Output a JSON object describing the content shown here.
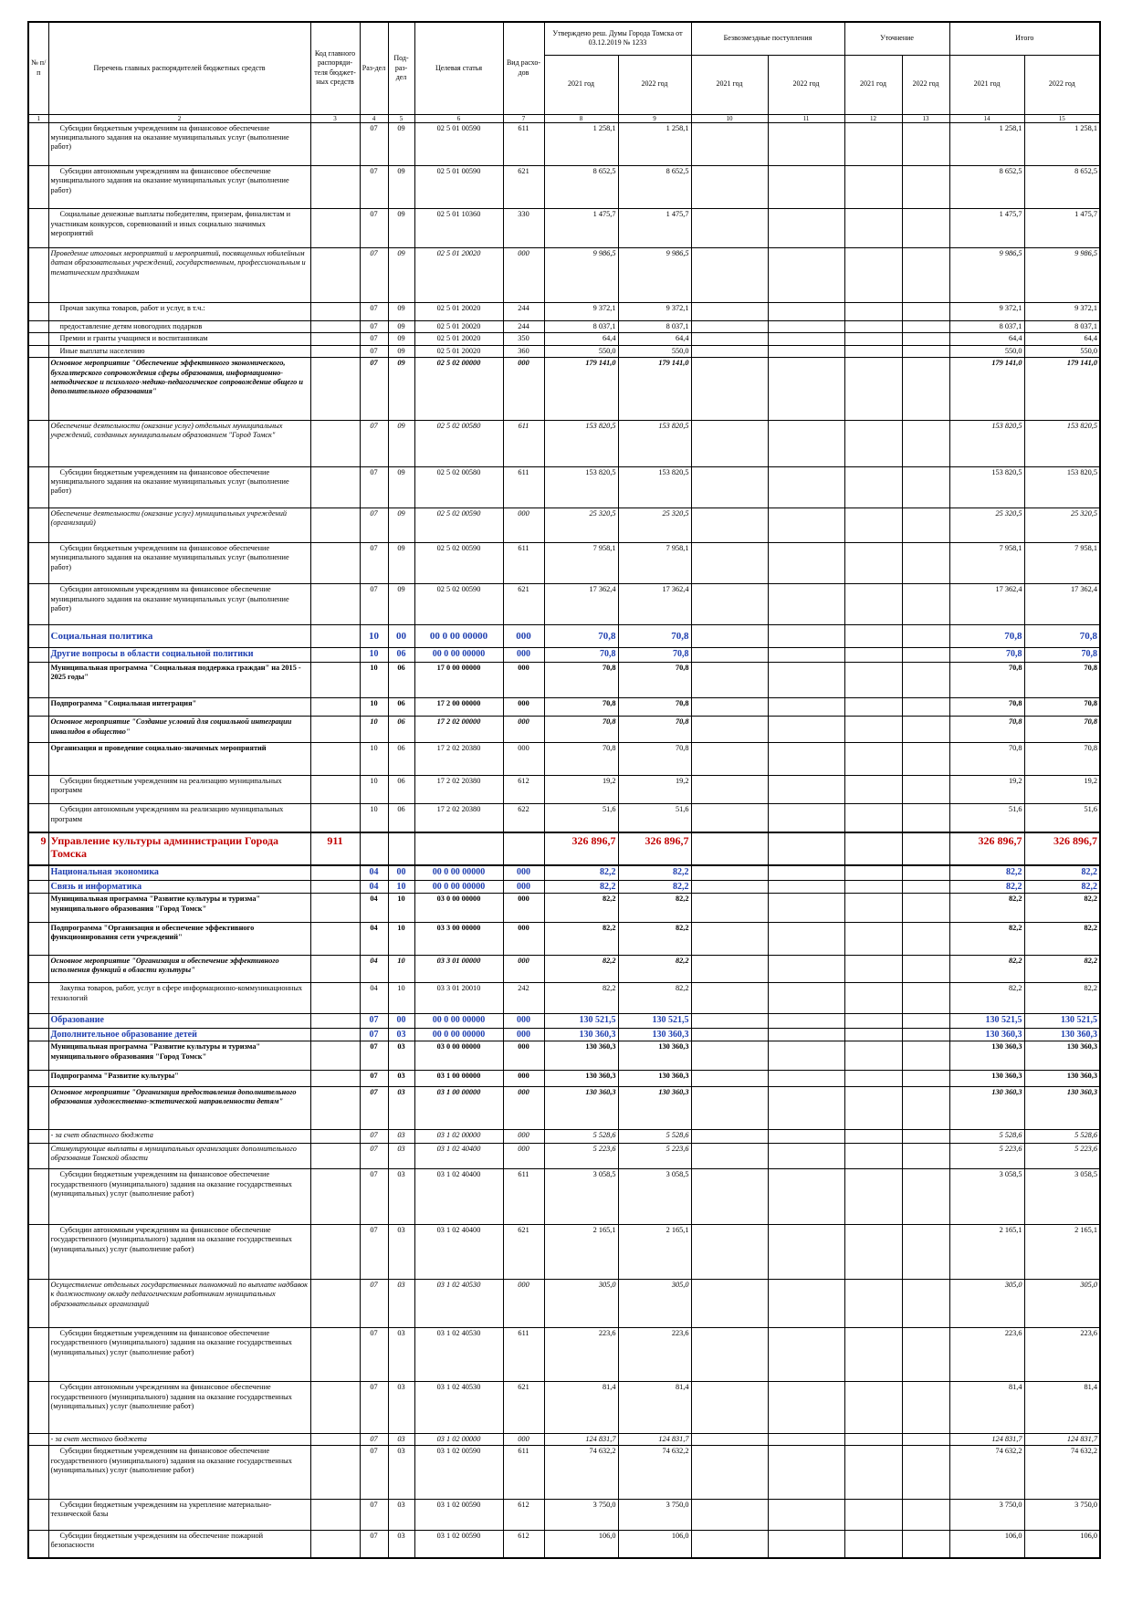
{
  "header": {
    "no": "№ п/п",
    "name": "Перечень главных распорядителей бюджетных средств",
    "code": "Код главного распоряди-теля бюджет-ных средств",
    "section": "Раз-дел",
    "subsection": "Под-раз-дел",
    "target": "Целевая статья",
    "kind": "Вид расхо-дов",
    "approved": "Утверждено реш. Думы Города Томска от 03.12.2019 № 1233",
    "grants": "Безвозмездные поступления",
    "adjust": "Уточнение",
    "total": "Итого",
    "years": [
      "2021 год",
      "2022 год",
      "2021 год",
      "2022 год",
      "2021 год",
      "2022 год",
      "2021 год",
      "2022 год"
    ],
    "numbers": [
      "1",
      "2",
      "3",
      "4",
      "5",
      "6",
      "7",
      "8",
      "9",
      "10",
      "11",
      "12",
      "13",
      "14",
      "15"
    ]
  },
  "table": {
    "rows": [
      {
        "name": "Субсидии бюджетным учреждениям на финансовое обеспечение муниципального задания на оказание муниципальных услуг (выполнение работ)",
        "section": "07",
        "subsection": "09",
        "target": "02 5 01 00590",
        "kind": "611",
        "approved_2021": "1 258,1",
        "approved_2022": "1 258,1",
        "total_2021": "1 258,1",
        "total_2022": "1 258,1",
        "style": "plain"
      },
      {
        "name": "Субсидии автономным учреждениям на финансовое обеспечение муниципального задания на оказание муниципальных услуг (выполнение работ)",
        "section": "07",
        "subsection": "09",
        "target": "02 5 01 00590",
        "kind": "621",
        "approved_2021": "8 652,5",
        "approved_2022": "8 652,5",
        "total_2021": "8 652,5",
        "total_2022": "8 652,5",
        "style": "plain"
      },
      {
        "name": "Социальные денежные выплаты победителям, призерам, финалистам и участникам конкурсов, соревнований и иных социально значимых мероприятий",
        "section": "07",
        "subsection": "09",
        "target": "02 5 01 10360",
        "kind": "330",
        "approved_2021": "1 475,7",
        "approved_2022": "1 475,7",
        "total_2021": "1 475,7",
        "total_2022": "1 475,7",
        "style": "plain"
      },
      {
        "name": "Проведение итоговых мероприятий и мероприятий, посвященных юбилейным датам образовательных учреждений, государственным, профессиональным и тематическим праздникам",
        "section": "07",
        "subsection": "09",
        "target": "02 5 01 20020",
        "kind": "000",
        "approved_2021": "9 986,5",
        "approved_2022": "9 986,5",
        "total_2021": "9 986,5",
        "total_2022": "9 986,5",
        "style": "italic"
      },
      {
        "name": "Прочая закупка товаров, работ и услуг, в т.ч.:",
        "section": "07",
        "subsection": "09",
        "target": "02 5 01 20020",
        "kind": "244",
        "approved_2021": "9 372,1",
        "approved_2022": "9 372,1",
        "total_2021": "9 372,1",
        "total_2022": "9 372,1",
        "style": "plain"
      },
      {
        "name": "предоставление детям новогодних подарков",
        "section": "07",
        "subsection": "09",
        "target": "02 5 01 20020",
        "kind": "244",
        "approved_2021": "8 037,1",
        "approved_2022": "8 037,1",
        "total_2021": "8 037,1",
        "total_2022": "8 037,1",
        "style": "plain"
      },
      {
        "name": "Премии и гранты учащимся и воспитанникам",
        "section": "07",
        "subsection": "09",
        "target": "02 5 01 20020",
        "kind": "350",
        "approved_2021": "64,4",
        "approved_2022": "64,4",
        "total_2021": "64,4",
        "total_2022": "64,4",
        "style": "plain"
      },
      {
        "name": "Иные выплаты населению",
        "section": "07",
        "subsection": "09",
        "target": "02 5 01 20020",
        "kind": "360",
        "approved_2021": "550,0",
        "approved_2022": "550,0",
        "total_2021": "550,0",
        "total_2022": "550,0",
        "style": "plain"
      },
      {
        "name": "Основное мероприятие \"Обеспечение эффективного экономического, бухгалтерского сопровождения сферы образования, информационно-методическое и психолого-медико-педагогическое сопровождение общего и дополнительного образования\"",
        "section": "07",
        "subsection": "09",
        "target": "02 5 02 00000",
        "kind": "000",
        "approved_2021": "179 141,0",
        "approved_2022": "179 141,0",
        "total_2021": "179 141,0",
        "total_2022": "179 141,0",
        "style": "bold-italic"
      },
      {
        "name": "Обеспечение деятельности (оказание услуг) отдельных муниципальных учреждений, созданных муниципальным образованием \"Город Томск\"",
        "section": "07",
        "subsection": "09",
        "target": "02 5 02 00580",
        "kind": "611",
        "approved_2021": "153 820,5",
        "approved_2022": "153 820,5",
        "total_2021": "153 820,5",
        "total_2022": "153 820,5",
        "style": "italic"
      },
      {
        "name": "Субсидии бюджетным учреждениям на финансовое обеспечение муниципального задания на оказание муниципальных услуг (выполнение работ)",
        "section": "07",
        "subsection": "09",
        "target": "02 5 02 00580",
        "kind": "611",
        "approved_2021": "153 820,5",
        "approved_2022": "153 820,5",
        "total_2021": "153 820,5",
        "total_2022": "153 820,5",
        "style": "plain"
      },
      {
        "name": "Обеспечение деятельности (оказание услуг) муниципальных учреждений (организаций)",
        "section": "07",
        "subsection": "09",
        "target": "02 5 02 00590",
        "kind": "000",
        "approved_2021": "25 320,5",
        "approved_2022": "25 320,5",
        "total_2021": "25 320,5",
        "total_2022": "25 320,5",
        "style": "italic"
      },
      {
        "name": "Субсидии бюджетным учреждениям на финансовое обеспечение муниципального задания на оказание муниципальных услуг (выполнение работ)",
        "section": "07",
        "subsection": "09",
        "target": "02 5 02 00590",
        "kind": "611",
        "approved_2021": "7 958,1",
        "approved_2022": "7 958,1",
        "total_2021": "7 958,1",
        "total_2022": "7 958,1",
        "style": "plain"
      },
      {
        "name": "Субсидии автономным учреждениям на финансовое обеспечение муниципального задания на оказание муниципальных услуг (выполнение работ)",
        "section": "07",
        "subsection": "09",
        "target": "02 5 02 00590",
        "kind": "621",
        "approved_2021": "17 362,4",
        "approved_2022": "17 362,4",
        "total_2021": "17 362,4",
        "total_2022": "17 362,4",
        "style": "plain"
      },
      {
        "name": "Социальная политика",
        "section": "10",
        "subsection": "00",
        "target": "00 0 00 00000",
        "kind": "000",
        "approved_2021": "70,8",
        "approved_2022": "70,8",
        "total_2021": "70,8",
        "total_2022": "70,8",
        "style": "blue-large"
      },
      {
        "name": "Другие вопросы в области социальной политики",
        "section": "10",
        "subsection": "06",
        "target": "00 0 00 00000",
        "kind": "000",
        "approved_2021": "70,8",
        "approved_2022": "70,8",
        "total_2021": "70,8",
        "total_2022": "70,8",
        "style": "blue"
      },
      {
        "name": "Муниципальная программа \"Социальная поддержка граждан\" на 2015 - 2025 годы\"",
        "section": "10",
        "subsection": "06",
        "target": "17 0 00 00000",
        "kind": "000",
        "approved_2021": "70,8",
        "approved_2022": "70,8",
        "total_2021": "70,8",
        "total_2022": "70,8",
        "style": "bold"
      },
      {
        "name": "Подпрограмма \"Социальная интеграция\"",
        "section": "10",
        "subsection": "06",
        "target": "17 2 00 00000",
        "kind": "000",
        "approved_2021": "70,8",
        "approved_2022": "70,8",
        "total_2021": "70,8",
        "total_2022": "70,8",
        "style": "bold"
      },
      {
        "name": "Основное мероприятие \"Создание условий для социальной интеграции инвалидов в общество\"",
        "section": "10",
        "subsection": "06",
        "target": "17 2 02 00000",
        "kind": "000",
        "approved_2021": "70,8",
        "approved_2022": "70,8",
        "total_2021": "70,8",
        "total_2022": "70,8",
        "style": "bold-italic"
      },
      {
        "name": "Организация и проведение социально-значимых мероприятий",
        "section": "10",
        "subsection": "06",
        "target": "17 2 02 20380",
        "kind": "000",
        "approved_2021": "70,8",
        "approved_2022": "70,8",
        "total_2021": "70,8",
        "total_2022": "70,8",
        "style": "bold-name"
      },
      {
        "name": "Субсидии бюджетным учреждениям на реализацию муниципальных программ",
        "section": "10",
        "subsection": "06",
        "target": "17 2 02 20380",
        "kind": "612",
        "approved_2021": "19,2",
        "approved_2022": "19,2",
        "total_2021": "19,2",
        "total_2022": "19,2",
        "style": "plain"
      },
      {
        "name": "Субсидии автономным учреждениям на реализацию муниципальных программ",
        "section": "10",
        "subsection": "06",
        "target": "17 2 02 20380",
        "kind": "622",
        "approved_2021": "51,6",
        "approved_2022": "51,6",
        "total_2021": "51,6",
        "total_2022": "51,6",
        "style": "plain"
      },
      {
        "n": "9",
        "name": "Управление культуры администрации Города Томска",
        "code": "911",
        "approved_2021": "326 896,7",
        "approved_2022": "326 896,7",
        "total_2021": "326 896,7",
        "total_2022": "326 896,7",
        "style": "red"
      },
      {
        "name": "Национальная экономика",
        "section": "04",
        "subsection": "00",
        "target": "00 0 00 00000",
        "kind": "000",
        "approved_2021": "82,2",
        "approved_2022": "82,2",
        "total_2021": "82,2",
        "total_2022": "82,2",
        "style": "blue"
      },
      {
        "name": "Связь и информатика",
        "section": "04",
        "subsection": "10",
        "target": "00 0 00 00000",
        "kind": "000",
        "approved_2021": "82,2",
        "approved_2022": "82,2",
        "total_2021": "82,2",
        "total_2022": "82,2",
        "style": "blue"
      },
      {
        "name": "Муниципальная программа \"Развитие культуры и туризма\" муниципального образования \"Город Томск\"",
        "section": "04",
        "subsection": "10",
        "target": "03 0 00 00000",
        "kind": "000",
        "approved_2021": "82,2",
        "approved_2022": "82,2",
        "total_2021": "82,2",
        "total_2022": "82,2",
        "style": "bold"
      },
      {
        "name": "Подпрограмма \"Организация и обеспечение эффективного функционирования сети учреждений\"",
        "section": "04",
        "subsection": "10",
        "target": "03 3 00 00000",
        "kind": "000",
        "approved_2021": "82,2",
        "approved_2022": "82,2",
        "total_2021": "82,2",
        "total_2022": "82,2",
        "style": "bold"
      },
      {
        "name": "Основное мероприятие \"Организация и обеспечение эффективного исполнения функций в области культуры\"",
        "section": "04",
        "subsection": "10",
        "target": "03 3 01 00000",
        "kind": "000",
        "approved_2021": "82,2",
        "approved_2022": "82,2",
        "total_2021": "82,2",
        "total_2022": "82,2",
        "style": "bold-italic"
      },
      {
        "name": "Закупка товаров, работ, услуг в сфере информационно-коммуникационных технологий",
        "section": "04",
        "subsection": "10",
        "target": "03 3 01 20010",
        "kind": "242",
        "approved_2021": "82,2",
        "approved_2022": "82,2",
        "total_2021": "82,2",
        "total_2022": "82,2",
        "style": "plain"
      },
      {
        "name": "Образование",
        "section": "07",
        "subsection": "00",
        "target": "00 0 00 00000",
        "kind": "000",
        "approved_2021": "130 521,5",
        "approved_2022": "130 521,5",
        "total_2021": "130 521,5",
        "total_2022": "130 521,5",
        "style": "blue"
      },
      {
        "name": "Дополнительное образование детей",
        "section": "07",
        "subsection": "03",
        "target": "00 0 00 00000",
        "kind": "000",
        "approved_2021": "130 360,3",
        "approved_2022": "130 360,3",
        "total_2021": "130 360,3",
        "total_2022": "130 360,3",
        "style": "blue"
      },
      {
        "name": "Муниципальная программа \"Развитие культуры и туризма\" муниципального образования \"Город Томск\"",
        "section": "07",
        "subsection": "03",
        "target": "03 0 00 00000",
        "kind": "000",
        "approved_2021": "130 360,3",
        "approved_2022": "130 360,3",
        "total_2021": "130 360,3",
        "total_2022": "130 360,3",
        "style": "bold"
      },
      {
        "name": "Подпрограмма \"Развитие культуры\"",
        "section": "07",
        "subsection": "03",
        "target": "03 1 00 00000",
        "kind": "000",
        "approved_2021": "130 360,3",
        "approved_2022": "130 360,3",
        "total_2021": "130 360,3",
        "total_2022": "130 360,3",
        "style": "bold"
      },
      {
        "name": "Основное мероприятие \"Организация предоставления дополнительного образования художественно-эстетической направленности детям\"",
        "section": "07",
        "subsection": "03",
        "target": "03 1 00 00000",
        "kind": "000",
        "approved_2021": "130 360,3",
        "approved_2022": "130 360,3",
        "total_2021": "130 360,3",
        "total_2022": "130 360,3",
        "style": "bold-italic"
      },
      {
        "name": "- за счет областного бюджета",
        "section": "07",
        "subsection": "03",
        "target": "03 1 02 00000",
        "kind": "000",
        "approved_2021": "5 528,6",
        "approved_2022": "5 528,6",
        "total_2021": "5 528,6",
        "total_2022": "5 528,6",
        "style": "italic"
      },
      {
        "name": "Стимулирующие выплаты в муниципальных организациях дополнительного образования Томской области",
        "section": "07",
        "subsection": "03",
        "target": "03 1 02 40400",
        "kind": "000",
        "approved_2021": "5 223,6",
        "approved_2022": "5 223,6",
        "total_2021": "5 223,6",
        "total_2022": "5 223,6",
        "style": "italic"
      },
      {
        "name": "Субсидии бюджетным учреждениям на финансовое обеспечение государственного (муниципального) задания на оказание государственных (муниципальных) услуг (выполнение работ)",
        "section": "07",
        "subsection": "03",
        "target": "03 1 02 40400",
        "kind": "611",
        "approved_2021": "3 058,5",
        "approved_2022": "3 058,5",
        "total_2021": "3 058,5",
        "total_2022": "3 058,5",
        "style": "plain"
      },
      {
        "name": "Субсидии автономным учреждениям на финансовое обеспечение государственного (муниципального) задания на оказание государственных (муниципальных) услуг (выполнение работ)",
        "section": "07",
        "subsection": "03",
        "target": "03 1 02 40400",
        "kind": "621",
        "approved_2021": "2 165,1",
        "approved_2022": "2 165,1",
        "total_2021": "2 165,1",
        "total_2022": "2 165,1",
        "style": "plain"
      },
      {
        "name": "Осуществление отдельных государственных полномочий по выплате надбавок к должностному окладу педагогическим работникам муниципальных образовательных организаций",
        "section": "07",
        "subsection": "03",
        "target": "03 1 02 40530",
        "kind": "000",
        "approved_2021": "305,0",
        "approved_2022": "305,0",
        "total_2021": "305,0",
        "total_2022": "305,0",
        "style": "italic"
      },
      {
        "name": "Субсидии бюджетным учреждениям на финансовое обеспечение государственного (муниципального) задания на оказание государственных (муниципальных) услуг (выполнение работ)",
        "section": "07",
        "subsection": "03",
        "target": "03 1 02 40530",
        "kind": "611",
        "approved_2021": "223,6",
        "approved_2022": "223,6",
        "total_2021": "223,6",
        "total_2022": "223,6",
        "style": "plain"
      },
      {
        "name": "Субсидии автономным учреждениям на финансовое обеспечение государственного (муниципального) задания на оказание государственных (муниципальных) услуг (выполнение работ)",
        "section": "07",
        "subsection": "03",
        "target": "03 1 02 40530",
        "kind": "621",
        "approved_2021": "81,4",
        "approved_2022": "81,4",
        "total_2021": "81,4",
        "total_2022": "81,4",
        "style": "plain"
      },
      {
        "name": "- за счет местного бюджета",
        "section": "07",
        "subsection": "03",
        "target": "03 1 02 00000",
        "kind": "000",
        "approved_2021": "124 831,7",
        "approved_2022": "124 831,7",
        "total_2021": "124 831,7",
        "total_2022": "124 831,7",
        "style": "italic"
      },
      {
        "name": "Субсидии бюджетным учреждениям на финансовое обеспечение государственного (муниципального) задания на оказание государственных (муниципальных) услуг (выполнение работ)",
        "section": "07",
        "subsection": "03",
        "target": "03 1 02 00590",
        "kind": "611",
        "approved_2021": "74 632,2",
        "approved_2022": "74 632,2",
        "total_2021": "74 632,2",
        "total_2022": "74 632,2",
        "style": "plain"
      },
      {
        "name": "Субсидии бюджетным учреждениям на укрепление материально-технической базы",
        "section": "07",
        "subsection": "03",
        "target": "03 1 02 00590",
        "kind": "612",
        "approved_2021": "3 750,0",
        "approved_2022": "3 750,0",
        "total_2021": "3 750,0",
        "total_2022": "3 750,0",
        "style": "plain"
      },
      {
        "name": "Субсидии бюджетным учреждениям на обеспечение пожарной безопасности",
        "section": "07",
        "subsection": "03",
        "target": "03 1 02 00590",
        "kind": "612",
        "approved_2021": "106,0",
        "approved_2022": "106,0",
        "total_2021": "106,0",
        "total_2022": "106,0",
        "style": "plain"
      }
    ]
  }
}
